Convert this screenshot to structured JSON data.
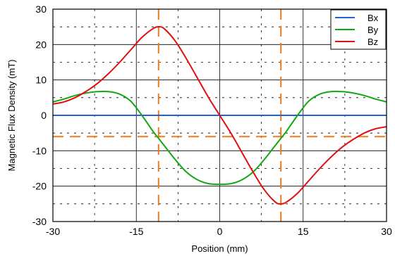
{
  "chart_data": {
    "type": "line",
    "xlabel": "Position (mm)",
    "ylabel": "Magnetic Flux Density (mT)",
    "xlim": [
      -30,
      30
    ],
    "ylim": [
      -30,
      30
    ],
    "xticks": [
      -30,
      -15,
      0,
      15,
      30
    ],
    "yticks": [
      -30,
      -20,
      -10,
      0,
      10,
      20,
      30
    ],
    "grid": true,
    "legend_position": "top-right",
    "series": [
      {
        "name": "Bx",
        "color": "#1f5fe0",
        "x": [
          -30,
          -20,
          -10,
          0,
          10,
          20,
          30
        ],
        "y": [
          0,
          0,
          0,
          0,
          0,
          0,
          0
        ]
      },
      {
        "name": "By",
        "color": "#12a812",
        "x": [
          -30,
          -28,
          -26,
          -24,
          -22,
          -20,
          -18,
          -16,
          -14,
          -12,
          -11,
          -10,
          -8,
          -6,
          -4,
          -2,
          0,
          2,
          4,
          6,
          8,
          10,
          11,
          12,
          14,
          16,
          18,
          20,
          22,
          24,
          26,
          28,
          30
        ],
        "y": [
          3.8,
          4.6,
          5.6,
          6.3,
          6.7,
          6.7,
          6.0,
          4.0,
          0.0,
          -4.5,
          -6.5,
          -8.5,
          -12.5,
          -16.0,
          -18.2,
          -19.3,
          -19.5,
          -19.3,
          -18.2,
          -16.0,
          -12.5,
          -8.5,
          -6.5,
          -4.5,
          0.0,
          4.0,
          6.0,
          6.7,
          6.7,
          6.3,
          5.6,
          4.6,
          3.8
        ]
      },
      {
        "name": "Bz",
        "color": "#e01010",
        "x": [
          -30,
          -28,
          -26,
          -24,
          -22,
          -20,
          -18,
          -16,
          -14,
          -12,
          -11,
          -10,
          -8,
          -6,
          -4,
          -2,
          0,
          2,
          4,
          6,
          8,
          10,
          11,
          12,
          14,
          16,
          18,
          20,
          22,
          24,
          26,
          28,
          30
        ],
        "y": [
          3.2,
          3.8,
          5.0,
          6.8,
          9.0,
          11.8,
          15.0,
          18.5,
          22.0,
          24.5,
          25.0,
          24.5,
          21.0,
          16.0,
          10.5,
          5.0,
          0.0,
          -5.0,
          -10.5,
          -16.0,
          -21.0,
          -24.5,
          -25.0,
          -24.5,
          -22.0,
          -18.5,
          -15.0,
          -11.8,
          -9.0,
          -6.8,
          -5.0,
          -3.8,
          -3.2
        ]
      }
    ],
    "reference_lines": {
      "color": "#ee7a1a",
      "vertical_x": [
        -11,
        11
      ],
      "horizontal_y": [
        -6
      ]
    }
  }
}
